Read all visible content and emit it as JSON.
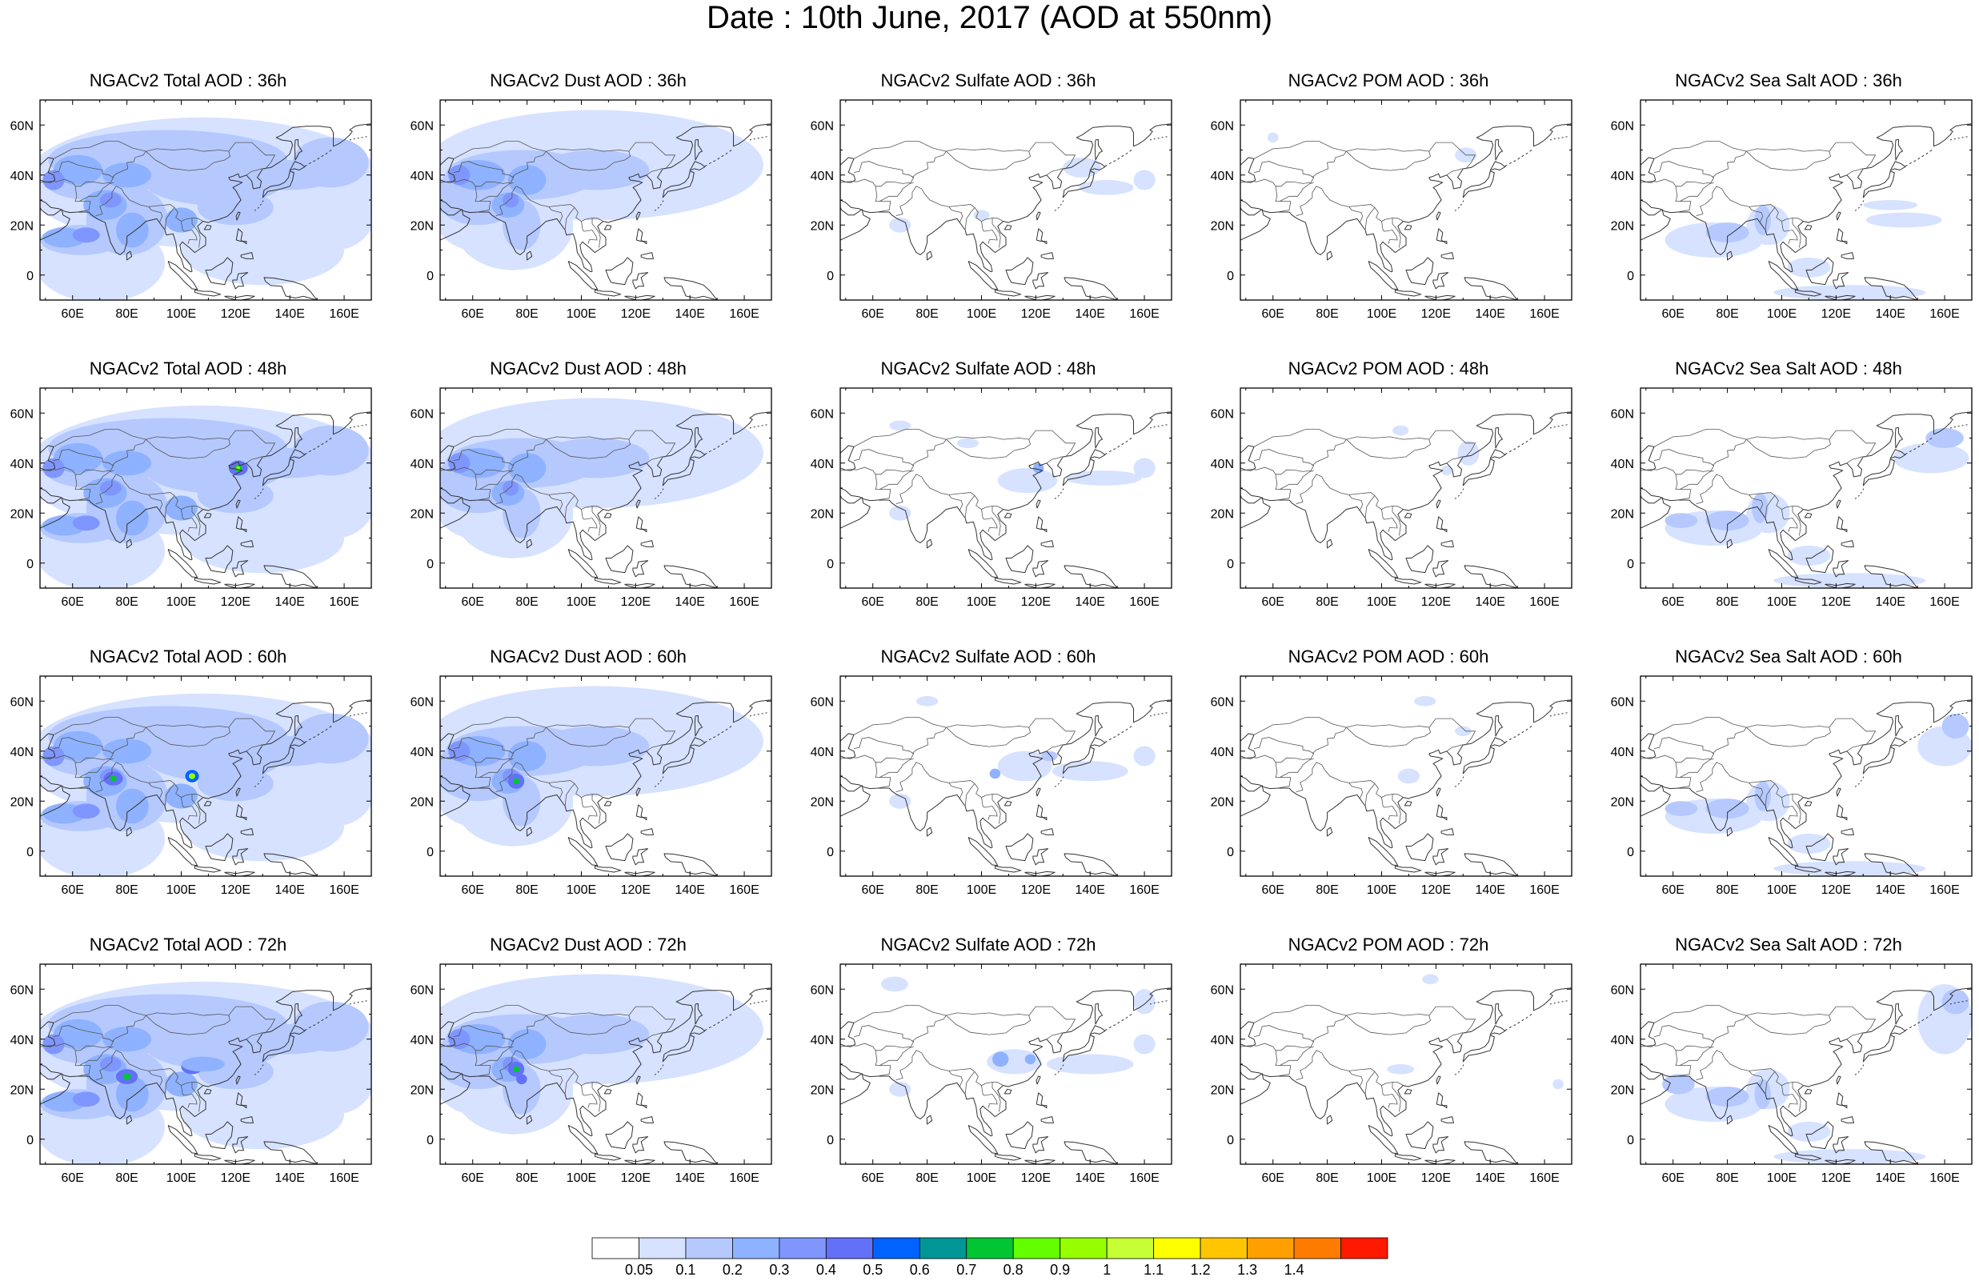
{
  "title": "Date : 10th June, 2017 (AOD at 550nm)",
  "axes": {
    "lon_ticks": [
      "60E",
      "80E",
      "100E",
      "120E",
      "140E",
      "160E"
    ],
    "lat_ticks": [
      "60N",
      "40N",
      "20N",
      "0"
    ],
    "lon_range": [
      48,
      170
    ],
    "lat_range": [
      -10,
      70
    ]
  },
  "species": [
    "total",
    "dust",
    "sulfate",
    "pom",
    "seasalt"
  ],
  "panels": [
    [
      "NGACv2 Total AOD : 36h",
      "NGACv2 Dust AOD : 36h",
      "NGACv2 Sulfate AOD : 36h",
      "NGACv2 POM AOD : 36h",
      "NGACv2 Sea Salt AOD : 36h"
    ],
    [
      "NGACv2 Total AOD : 48h",
      "NGACv2 Dust AOD : 48h",
      "NGACv2 Sulfate AOD : 48h",
      "NGACv2 POM AOD : 48h",
      "NGACv2 Sea Salt AOD : 48h"
    ],
    [
      "NGACv2 Total AOD : 60h",
      "NGACv2 Dust AOD : 60h",
      "NGACv2 Sulfate AOD : 60h",
      "NGACv2 POM AOD : 60h",
      "NGACv2 Sea Salt AOD : 60h"
    ],
    [
      "NGACv2 Total AOD : 72h",
      "NGACv2 Dust AOD : 72h",
      "NGACv2 Sulfate AOD : 72h",
      "NGACv2 POM AOD : 72h",
      "NGACv2 Sea Salt  AOD : 72h"
    ]
  ],
  "colorbar": {
    "labels": [
      "0.05",
      "0.1",
      "0.2",
      "0.3",
      "0.4",
      "0.5",
      "0.6",
      "0.7",
      "0.8",
      "0.9",
      "1",
      "1.1",
      "1.2",
      "1.3",
      "1.4"
    ],
    "colors": [
      "#ffffff",
      "#d6e2ff",
      "#b5c9ff",
      "#8eb2ff",
      "#7f96ff",
      "#6370f8",
      "#0063ff",
      "#009696",
      "#00c633",
      "#63ff00",
      "#96ff00",
      "#c6ff33",
      "#ffff00",
      "#ffc600",
      "#ffa000",
      "#ff7c00",
      "#ff1900"
    ]
  }
}
